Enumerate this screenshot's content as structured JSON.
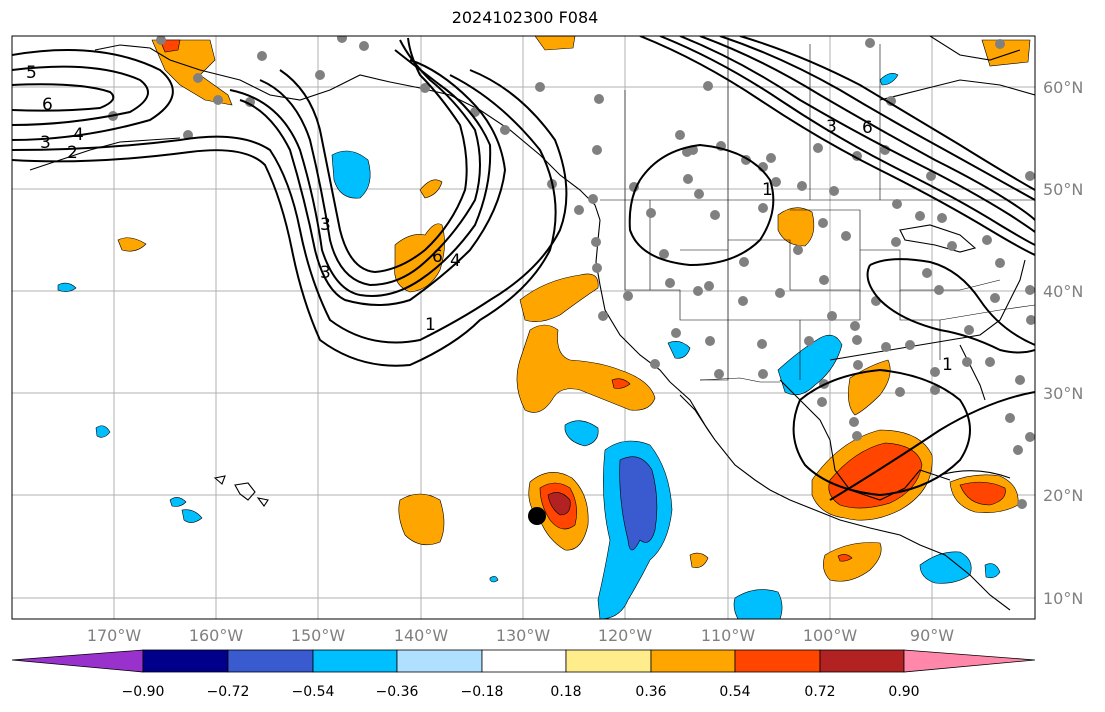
{
  "title": "2024102300 F084",
  "latitude_labels": [
    "60°N",
    "50°N",
    "40°N",
    "30°N",
    "20°N",
    "10°N"
  ],
  "longitude_labels": [
    "170°W",
    "160°W",
    "150°W",
    "140°W",
    "130°W",
    "120°W",
    "110°W",
    "100°W",
    "90°W"
  ],
  "contour_labels": [
    "5",
    "6",
    "4",
    "3",
    "2",
    "3",
    "3",
    "6",
    "4",
    "1",
    "1",
    "3",
    "6",
    "1"
  ],
  "colorbar": {
    "ticks": [
      "−0.90",
      "−0.72",
      "−0.54",
      "−0.36",
      "−0.18",
      "0.18",
      "0.36",
      "0.54",
      "0.72",
      "0.90"
    ],
    "colors": [
      "#9932cc",
      "#00008b",
      "#3a5bd0",
      "#00bfff",
      "#b0e0ff",
      "#ffffff",
      "#ffec8b",
      "#ffa500",
      "#ff4500",
      "#b22222",
      "#ff88aa"
    ]
  },
  "map_colors": {
    "gridline": "#b0b0b0",
    "coast": "#000000",
    "station": "#808080",
    "marker": "#000000"
  }
}
